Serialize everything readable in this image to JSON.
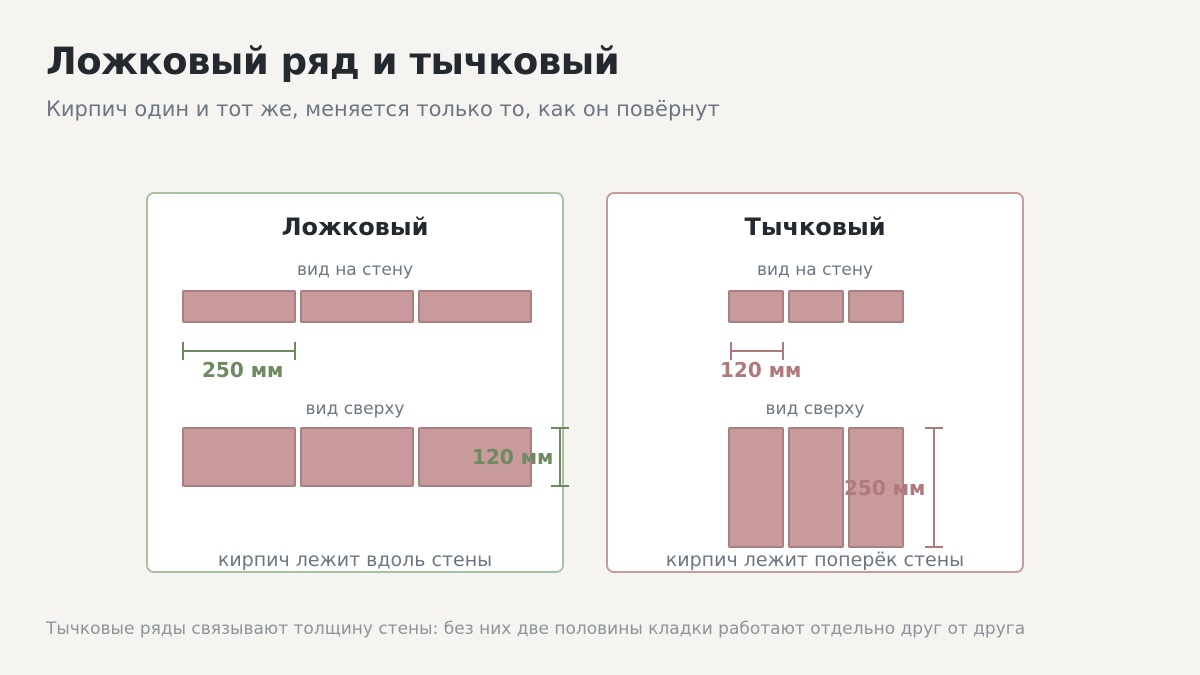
{
  "header": {
    "title": "Ложковый ряд и тычковый",
    "subtitle": "Кирпич один и тот же, меняется только то, как он повёрнут"
  },
  "panels": [
    {
      "title": "Ложковый",
      "wall_view_label": "вид на стену",
      "length_label": "250 мм",
      "top_view_label": "вид сверху",
      "depth_label": "120 мм",
      "caption": "кирпич лежит вдоль стены",
      "accent": "#6d8a61"
    },
    {
      "title": "Тычковый",
      "wall_view_label": "вид на стену",
      "length_label": "120 мм",
      "top_view_label": "вид сверху",
      "depth_label": "250 мм",
      "caption": "кирпич лежит поперёк стены",
      "accent": "#b07a7d"
    }
  ],
  "footnote": "Тычковые ряды связывают толщину стены: без них две половины кладки работают отдельно друг от друга",
  "colors": {
    "brick_fill": "#c99a9b",
    "brick_border": "#a98080",
    "stretcher_border": "#a9c1a2",
    "header_border": "#c9999d"
  }
}
